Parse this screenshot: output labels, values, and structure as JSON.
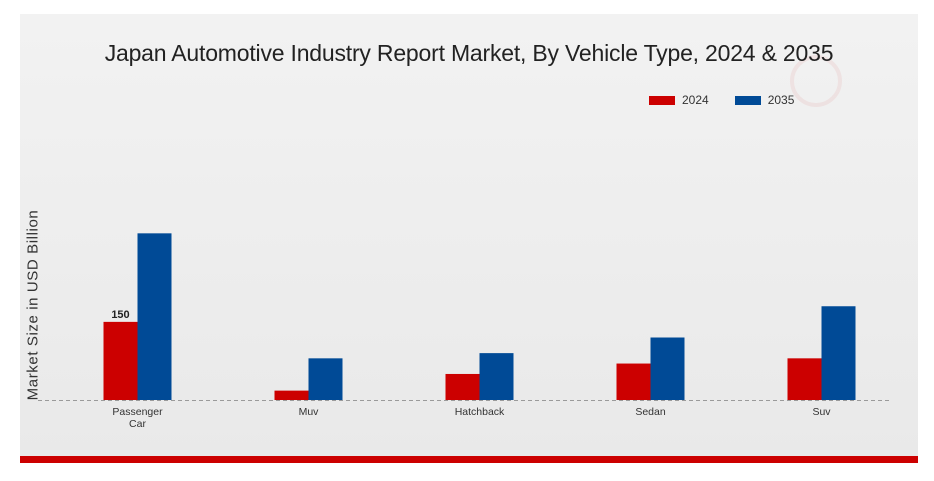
{
  "chart_data": {
    "type": "bar",
    "title": "Japan Automotive Industry Report Market, By Vehicle Type, 2024 & 2035",
    "xlabel": "",
    "ylabel": "Market Size in USD Billion",
    "categories": [
      "Passenger\nCar",
      "Muv",
      "Hatchback",
      "Sedan",
      "Suv"
    ],
    "series": [
      {
        "name": "2024",
        "color": "#cc0000",
        "values": [
          150,
          18,
          50,
          70,
          80
        ]
      },
      {
        "name": "2035",
        "color": "#004a96",
        "values": [
          320,
          80,
          90,
          120,
          180
        ]
      }
    ],
    "data_labels": [
      {
        "series": 0,
        "category": 0,
        "text": "150"
      }
    ],
    "ylim": [
      0,
      480
    ],
    "grid": false,
    "baseline": "dashed",
    "legend_position": "top-right"
  }
}
